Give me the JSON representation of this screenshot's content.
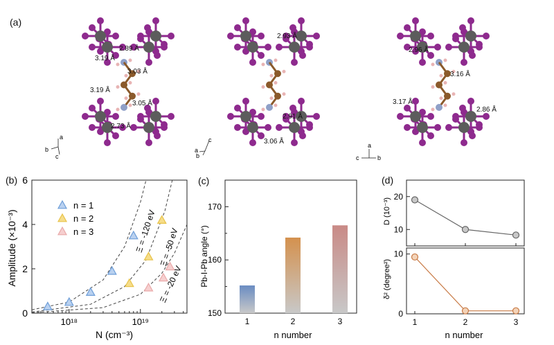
{
  "panels": {
    "a": {
      "label": "(a)"
    },
    "b": {
      "label": "(b)"
    },
    "c": {
      "label": "(c)"
    },
    "d": {
      "label": "(d)"
    }
  },
  "structures": [
    {
      "distances": [
        "2.89 Å",
        "3.19 Å",
        "3.03 Å",
        "3.19 Å",
        "3.05 Å",
        "2.73 Å"
      ],
      "axes": {
        "up": "a",
        "left": "b",
        "down": "c"
      }
    },
    {
      "distances": [
        "2.93 Å",
        "2.91 Å",
        "3.06 Å"
      ],
      "axes": {
        "up": "c",
        "left": "a",
        "down": "b"
      }
    },
    {
      "distances": [
        "2.96 Å",
        "3.16 Å",
        "3.17 Å",
        "2.86 Å"
      ],
      "axes": {
        "up": "a",
        "left": "c",
        "down": "b"
      }
    }
  ],
  "colors": {
    "iodine": "#8e2a8e",
    "lead": "#5c5c5c",
    "carbon": "#8b5a2b",
    "nitrogen": "#8fa0c8",
    "hydrogen": "#e8b4b4",
    "bond": "#8e2a8e"
  },
  "chart_data": [
    {
      "panel": "b",
      "type": "scatter",
      "xlabel": "N (cm⁻³)",
      "ylabel": "Amplitude (×10⁻³)",
      "xscale": "log",
      "xlim": [
        3e+17,
        4.5e+19
      ],
      "ylim": [
        0,
        6
      ],
      "xticks": [
        "10¹⁸",
        "10¹⁹"
      ],
      "yticks": [
        0,
        2,
        4,
        6
      ],
      "grid": false,
      "legend_position": "top-left",
      "series": [
        {
          "name": "n = 1",
          "color": "#6e9ed8",
          "fill": "#b9d1f0",
          "x": [
            5e+17,
            1e+18,
            2e+18,
            4e+18,
            8e+18
          ],
          "y": [
            0.3,
            0.5,
            0.95,
            1.9,
            3.5
          ]
        },
        {
          "name": "n = 2",
          "color": "#e8c34a",
          "fill": "#f6dd8a",
          "x": [
            7e+18,
            1.3e+19,
            2e+19
          ],
          "y": [
            1.35,
            2.55,
            4.2
          ]
        },
        {
          "name": "n = 3",
          "color": "#e9a9a9",
          "fill": "#f6cfcf",
          "x": [
            1.3e+19,
            2.1e+19,
            2.6e+19
          ],
          "y": [
            1.15,
            1.6,
            2.1
          ]
        }
      ],
      "fits": [
        {
          "label": "Ξ = -120 eV",
          "x": [
            3e+17,
            1e+18,
            3e+18,
            6e+18,
            1e+19,
            1.2e+19
          ],
          "y": [
            0.15,
            0.5,
            1.5,
            3.0,
            5.0,
            6.0
          ]
        },
        {
          "label": "Ξ = -50 eV",
          "x": [
            3e+17,
            2e+18,
            6e+18,
            1.2e+19,
            2.2e+19,
            2.8e+19
          ],
          "y": [
            0.05,
            0.4,
            1.2,
            2.4,
            4.6,
            6.0
          ]
        },
        {
          "label": "Ξ = -20 eV",
          "x": [
            3e+17,
            3e+18,
            1e+19,
            2e+19,
            3e+19,
            4.5e+19
          ],
          "y": [
            0.02,
            0.25,
            0.85,
            1.8,
            2.7,
            4.0
          ]
        }
      ]
    },
    {
      "panel": "c",
      "type": "bar",
      "xlabel": "n number",
      "ylabel": "Pb-I-Pb angle (°)",
      "categories": [
        "1",
        "2",
        "3"
      ],
      "values": [
        155.2,
        164.2,
        166.5
      ],
      "ylim": [
        150,
        175
      ],
      "yticks": [
        150,
        160,
        170
      ],
      "colors_top": [
        "#6a8cc2",
        "#d4914e",
        "#c98a86"
      ],
      "color_bottom": "#c8c8c8"
    },
    {
      "panel": "d",
      "type": "line",
      "subplots": [
        {
          "ylabel": "D (10⁻³)",
          "x": [
            1,
            2,
            3
          ],
          "y": [
            19,
            10,
            8.3
          ],
          "ylim": [
            5,
            25
          ],
          "yticks": [
            10,
            20
          ],
          "color": "#666666",
          "fill": "#c8c8c8"
        },
        {
          "ylabel": "δ² (degree²)",
          "x": [
            1,
            2,
            3
          ],
          "y": [
            9.5,
            0.5,
            0.5
          ],
          "ylim": [
            0,
            11
          ],
          "yticks": [
            0,
            10
          ],
          "color": "#c87a45",
          "fill": "#f3d3b8"
        }
      ],
      "xlabel": "n number",
      "xticks": [
        "1",
        "2",
        "3"
      ]
    }
  ]
}
